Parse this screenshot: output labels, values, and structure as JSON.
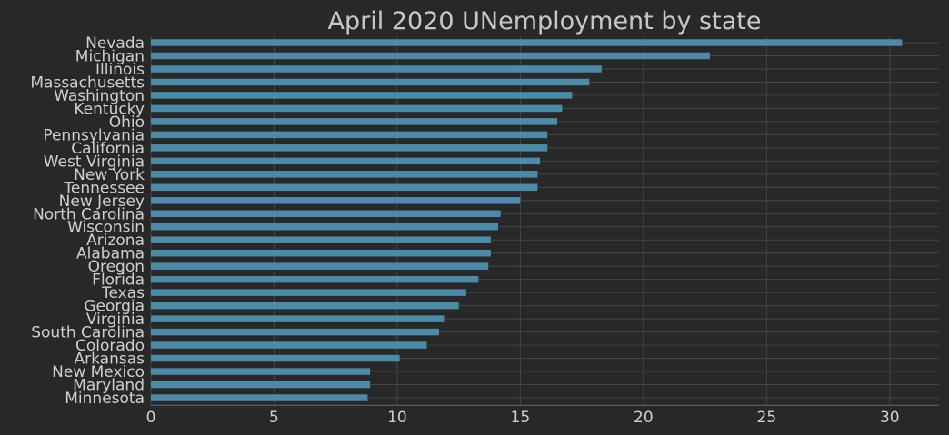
{
  "chart_data": {
    "type": "bar",
    "orientation": "horizontal",
    "title": "April 2020 UNemployment by state",
    "xlabel": "",
    "ylabel": "",
    "categories": [
      "Nevada",
      "Michigan",
      "Illinois",
      "Massachusetts",
      "Washington",
      "Kentucky",
      "Ohio",
      "Pennsylvania",
      "California",
      "West Virginia",
      "New York",
      "Tennessee",
      "New Jersey",
      "North Carolina",
      "Wisconsin",
      "Arizona",
      "Alabama",
      "Oregon",
      "Florida",
      "Texas",
      "Georgia",
      "Virginia",
      "South Carolina",
      "Colorado",
      "Arkansas",
      "New Mexico",
      "Maryland",
      "Minnesota"
    ],
    "values": [
      30.5,
      22.7,
      18.3,
      17.8,
      17.1,
      16.7,
      16.5,
      16.1,
      16.1,
      15.8,
      15.7,
      15.7,
      15.0,
      14.2,
      14.1,
      13.8,
      13.8,
      13.7,
      13.3,
      12.8,
      12.5,
      11.9,
      11.7,
      11.2,
      10.1,
      8.9,
      8.9,
      8.8
    ],
    "xlim": [
      0,
      32
    ],
    "xticks": [
      0,
      5,
      10,
      15,
      20,
      25,
      30
    ],
    "grid": true,
    "colors": {
      "bar": "#4b8ba8",
      "background": "#282828",
      "grid": "#454545",
      "text": "#cfcfcf"
    }
  }
}
